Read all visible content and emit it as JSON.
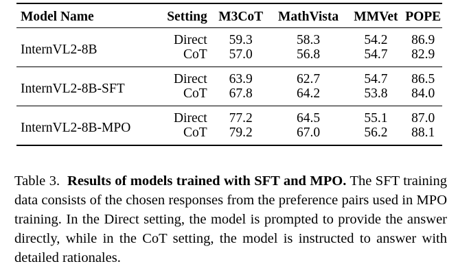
{
  "table": {
    "headers": [
      "Model Name",
      "Setting",
      "M3CoT",
      "MathVista",
      "MMVet",
      "POPE"
    ],
    "groups": [
      {
        "model": "InternVL2-8B",
        "rows": [
          {
            "setting": "Direct",
            "values": [
              "59.3",
              "58.3",
              "54.2",
              "86.9"
            ]
          },
          {
            "setting": "CoT",
            "values": [
              "57.0",
              "56.8",
              "54.7",
              "82.9"
            ]
          }
        ]
      },
      {
        "model": "InternVL2-8B-SFT",
        "rows": [
          {
            "setting": "Direct",
            "values": [
              "63.9",
              "62.7",
              "54.7",
              "86.5"
            ]
          },
          {
            "setting": "CoT",
            "values": [
              "67.8",
              "64.2",
              "53.8",
              "84.0"
            ]
          }
        ]
      },
      {
        "model": "InternVL2-8B-MPO",
        "rows": [
          {
            "setting": "Direct",
            "values": [
              "77.2",
              "64.5",
              "55.1",
              "87.0"
            ]
          },
          {
            "setting": "CoT",
            "values": [
              "79.2",
              "67.0",
              "56.2",
              "88.1"
            ]
          }
        ]
      }
    ]
  },
  "caption": {
    "label": "Table 3.",
    "title": "Results of models trained with SFT and MPO.",
    "body": "The SFT training data consists of the chosen responses from the preference pairs used in MPO training. In the Direct setting, the model is prompted to provide the answer directly, while in the CoT setting, the model is instructed to answer with detailed rationales."
  }
}
